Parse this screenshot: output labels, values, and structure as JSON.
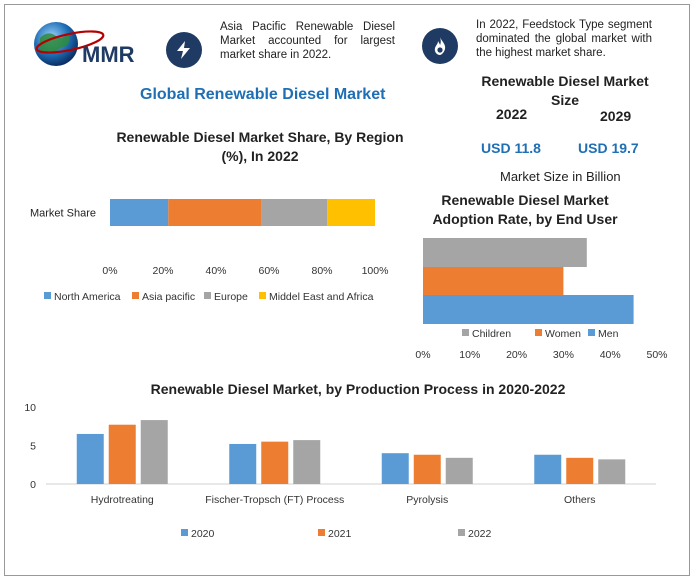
{
  "logo": {
    "text": "MMR"
  },
  "callouts": [
    {
      "icon": "lightning-icon",
      "text": "Asia Pacific Renewable Diesel Market accounted for largest market share in 2022."
    },
    {
      "icon": "flame-icon",
      "text": "In 2022, Feedstock Type segment dominated the global market with the highest market share."
    }
  ],
  "main_title": "Global Renewable Diesel Market",
  "kpi": {
    "title": "Renewable Diesel Market Size",
    "year_a": "2022",
    "year_b": "2029",
    "value_a": "USD 11.8",
    "value_b": "USD 19.7",
    "caption": "Market Size in Billion"
  },
  "colors": {
    "blue": "#5b9bd5",
    "orange": "#ed7d31",
    "gray": "#a5a5a5",
    "yellow": "#ffc000",
    "accent": "#1f6fb5",
    "navy": "#1f3b64"
  },
  "chart_data": [
    {
      "type": "bar",
      "orientation": "horizontal-stacked",
      "title": "Renewable Diesel Market Share, By Region (%), In 2022",
      "categories": [
        "Market Share"
      ],
      "series": [
        {
          "name": "North America",
          "values": [
            22
          ],
          "color": "#5b9bd5"
        },
        {
          "name": "Asia pacific",
          "values": [
            35
          ],
          "color": "#ed7d31"
        },
        {
          "name": "Europe",
          "values": [
            25
          ],
          "color": "#a5a5a5"
        },
        {
          "name": "Middel East and Africa",
          "values": [
            18
          ],
          "color": "#ffc000"
        }
      ],
      "xticks": [
        "0%",
        "20%",
        "40%",
        "60%",
        "80%",
        "100%"
      ],
      "xlim": [
        0,
        100
      ],
      "legend": "bottom"
    },
    {
      "type": "bar",
      "orientation": "horizontal",
      "title": "Renewable Diesel Market Adoption Rate, by End User",
      "categories": [
        "Children",
        "Women",
        "Men"
      ],
      "values": [
        35,
        30,
        45
      ],
      "colors": [
        "#a5a5a5",
        "#ed7d31",
        "#5b9bd5"
      ],
      "xticks": [
        "0%",
        "10%",
        "20%",
        "30%",
        "40%",
        "50%"
      ],
      "xlim": [
        0,
        50
      ],
      "legend": "bottom"
    },
    {
      "type": "bar",
      "title": "Renewable Diesel Market, by Production Process in 2020-2022",
      "categories": [
        "Hydrotreating",
        "Fischer-Tropsch (FT) Process",
        "Pyrolysis",
        "Others"
      ],
      "series": [
        {
          "name": "2020",
          "values": [
            6.5,
            5.2,
            4.0,
            3.8
          ],
          "color": "#5b9bd5"
        },
        {
          "name": "2021",
          "values": [
            7.7,
            5.5,
            3.8,
            3.4
          ],
          "color": "#ed7d31"
        },
        {
          "name": "2022",
          "values": [
            8.3,
            5.7,
            3.4,
            3.2
          ],
          "color": "#a5a5a5"
        }
      ],
      "yticks": [
        "0",
        "5",
        "10"
      ],
      "ylim": [
        0,
        10
      ],
      "legend": "bottom"
    }
  ]
}
